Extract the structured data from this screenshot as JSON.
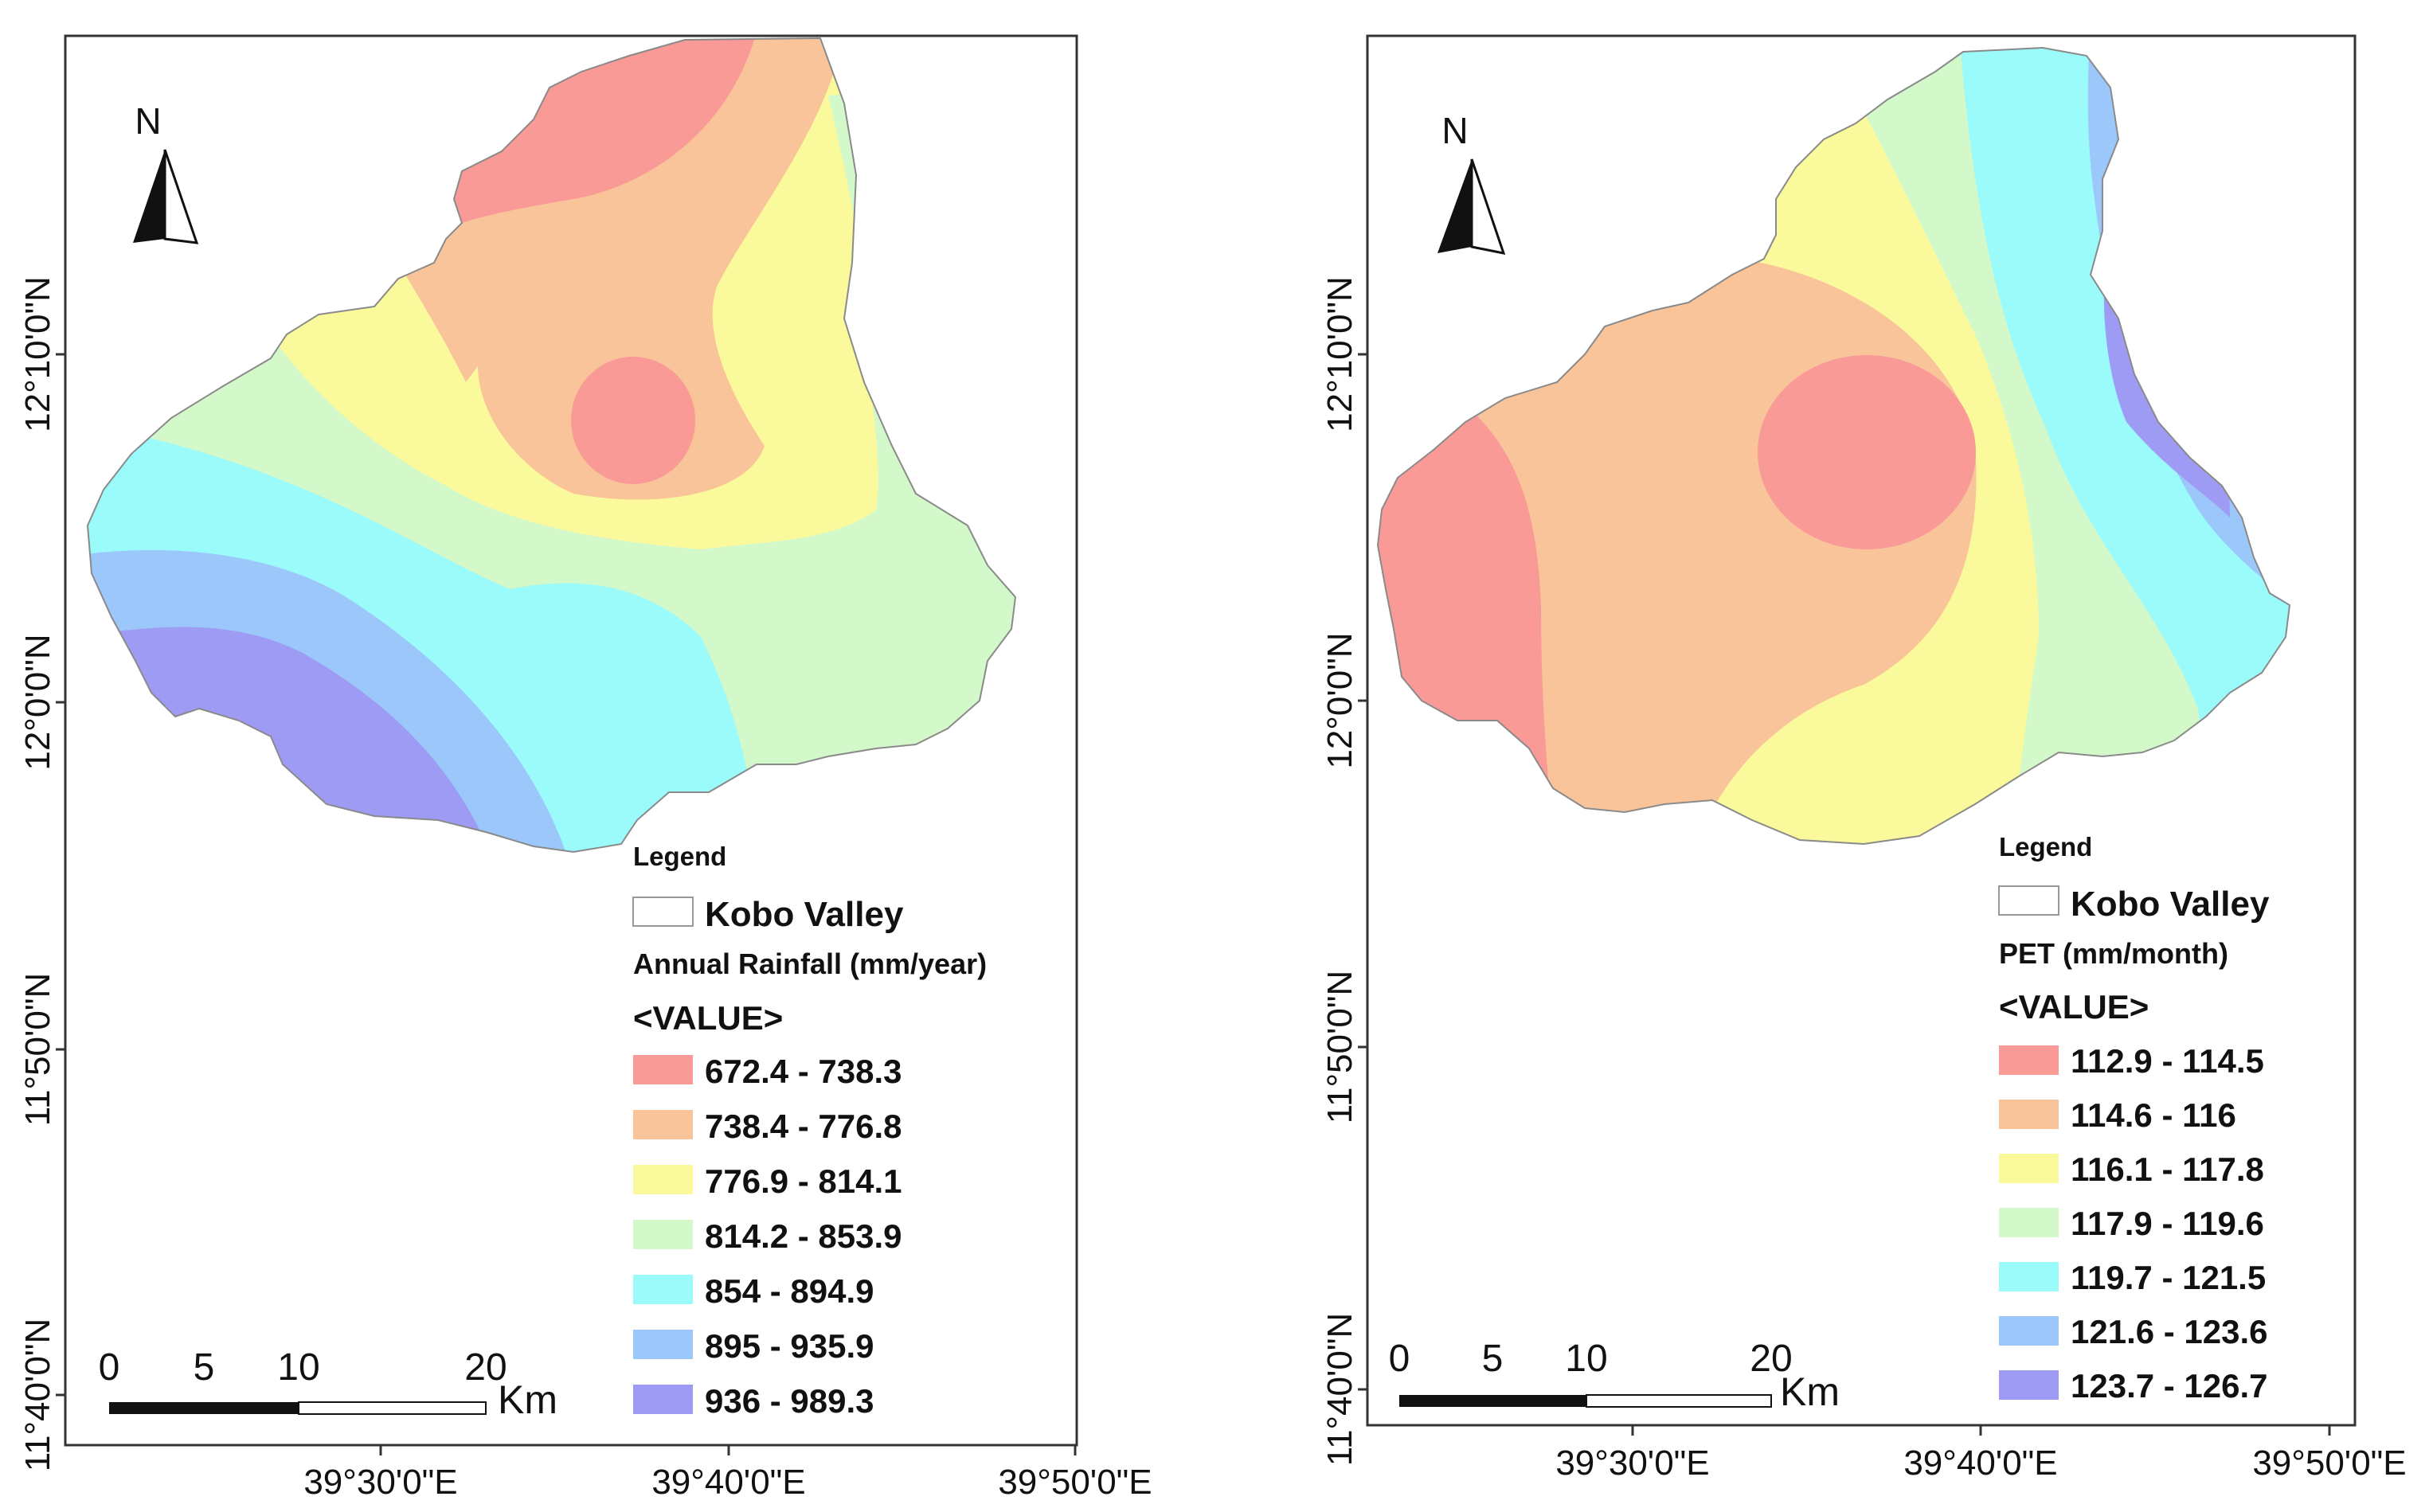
{
  "north_label": "N",
  "scale_bar": {
    "ticks": [
      "0",
      "5",
      "10",
      "20"
    ],
    "unit": "Km"
  },
  "maps": [
    {
      "id": "rainfall",
      "y_labels": [
        "12°10'0\"N",
        "12°0'0\"N",
        "11°50'0\"N",
        "11°40'0\"N"
      ],
      "x_labels": [
        "39°30'0\"E",
        "39°40'0\"E",
        "39°50'0\"E"
      ],
      "legend": {
        "title": "Legend",
        "boundary_label": "Kobo Valley",
        "variable": "Annual Rainfall (mm/year)",
        "value_header": "<VALUE>",
        "classes": [
          {
            "label": "672.4 - 738.3",
            "color": "#f99a97"
          },
          {
            "label": "738.4 - 776.8",
            "color": "#f9c49a"
          },
          {
            "label": "776.9 - 814.1",
            "color": "#fafa9c"
          },
          {
            "label": "814.2 - 853.9",
            "color": "#d3f8c9"
          },
          {
            "label": "854 - 894.9",
            "color": "#9bfafa"
          },
          {
            "label": "895 - 935.9",
            "color": "#9cc7fa"
          },
          {
            "label": "936 - 989.3",
            "color": "#9e9bf4"
          }
        ]
      }
    },
    {
      "id": "pet",
      "y_labels": [
        "12°10'0\"N",
        "12°0'0\"N",
        "11°50'0\"N",
        "11°40'0\"N"
      ],
      "x_labels": [
        "39°30'0\"E",
        "39°40'0\"E",
        "39°50'0\"E"
      ],
      "legend": {
        "title": "Legend",
        "boundary_label": "Kobo Valley",
        "variable": "PET (mm/month)",
        "value_header": "<VALUE>",
        "classes": [
          {
            "label": "112.9 - 114.5",
            "color": "#f99a97"
          },
          {
            "label": "114.6 - 116",
            "color": "#f9c49a"
          },
          {
            "label": "116.1 - 117.8",
            "color": "#fafa9c"
          },
          {
            "label": "117.9 - 119.6",
            "color": "#d3f8c9"
          },
          {
            "label": "119.7 - 121.5",
            "color": "#9bfafa"
          },
          {
            "label": "121.6 - 123.6",
            "color": "#9cc7fa"
          },
          {
            "label": "123.7 - 126.7",
            "color": "#9e9bf4"
          }
        ]
      }
    }
  ]
}
